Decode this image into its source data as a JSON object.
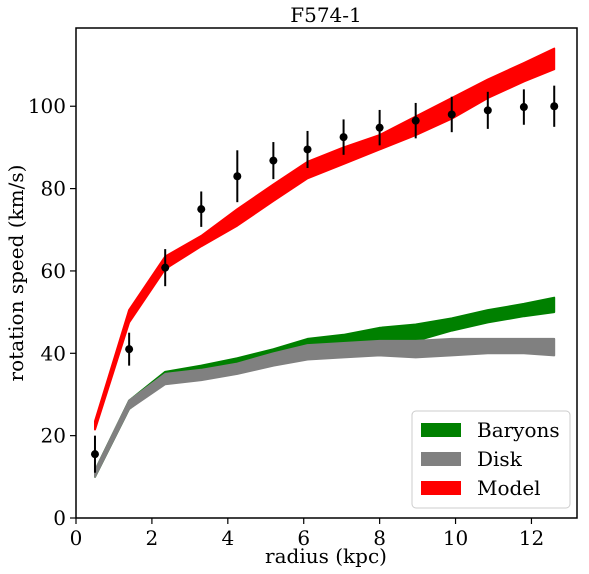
{
  "chart_data": {
    "type": "area",
    "title": "F574-1",
    "xlabel": "radius (kpc)",
    "ylabel": "rotation speed (km/s)",
    "xlim": [
      0,
      13.2
    ],
    "ylim": [
      0,
      119
    ],
    "xticks": [
      0,
      2,
      4,
      6,
      8,
      10,
      12
    ],
    "yticks": [
      0,
      20,
      40,
      60,
      80,
      100
    ],
    "grid": false,
    "legend_position": "bottom-right",
    "x": [
      0.5,
      1.4,
      2.35,
      3.3,
      4.25,
      5.2,
      6.1,
      7.05,
      8.0,
      8.95,
      9.9,
      10.85,
      11.8,
      12.6
    ],
    "series": [
      {
        "name": "Baryons",
        "color": "#008000",
        "lower": [
          10.0,
          26.5,
          33.0,
          34.0,
          35.8,
          38.0,
          39.5,
          40.5,
          42.3,
          43.0,
          45.5,
          47.5,
          49.0,
          50.0
        ],
        "upper": [
          11.5,
          28.5,
          35.5,
          37.0,
          38.8,
          41.0,
          43.5,
          44.5,
          46.2,
          47.0,
          48.5,
          50.5,
          52.0,
          53.5
        ]
      },
      {
        "name": "Disk",
        "color": "#808080",
        "lower": [
          10.0,
          26.5,
          32.5,
          33.5,
          35.0,
          37.0,
          38.5,
          39.0,
          39.5,
          39.0,
          39.5,
          40.0,
          40.0,
          39.5
        ],
        "upper": [
          11.5,
          28.5,
          35.0,
          36.0,
          37.5,
          40.0,
          42.0,
          42.5,
          43.0,
          43.0,
          43.5,
          43.5,
          43.5,
          43.5
        ]
      },
      {
        "name": "Model",
        "color": "#ff0000",
        "lower": [
          21.5,
          47.5,
          60.5,
          66.0,
          71.0,
          77.0,
          82.5,
          86.0,
          89.5,
          93.0,
          97.0,
          102.0,
          106.0,
          109.0
        ],
        "upper": [
          23.5,
          50.5,
          63.5,
          68.5,
          75.0,
          81.0,
          86.5,
          90.0,
          93.0,
          97.5,
          102.0,
          106.5,
          110.5,
          114.0
        ]
      }
    ],
    "observations": {
      "name": "data",
      "x": [
        0.5,
        1.4,
        2.35,
        3.3,
        4.25,
        5.2,
        6.1,
        7.05,
        8.0,
        8.95,
        9.9,
        10.85,
        11.8,
        12.6
      ],
      "y": [
        15.5,
        41.0,
        60.8,
        75.0,
        83.0,
        86.8,
        89.5,
        92.5,
        94.8,
        96.5,
        98.0,
        99.0,
        99.8,
        100.0
      ],
      "err": [
        4.5,
        4.0,
        4.5,
        4.3,
        6.3,
        4.5,
        4.5,
        4.3,
        4.3,
        4.3,
        4.3,
        4.5,
        4.3,
        5.0
      ]
    }
  }
}
